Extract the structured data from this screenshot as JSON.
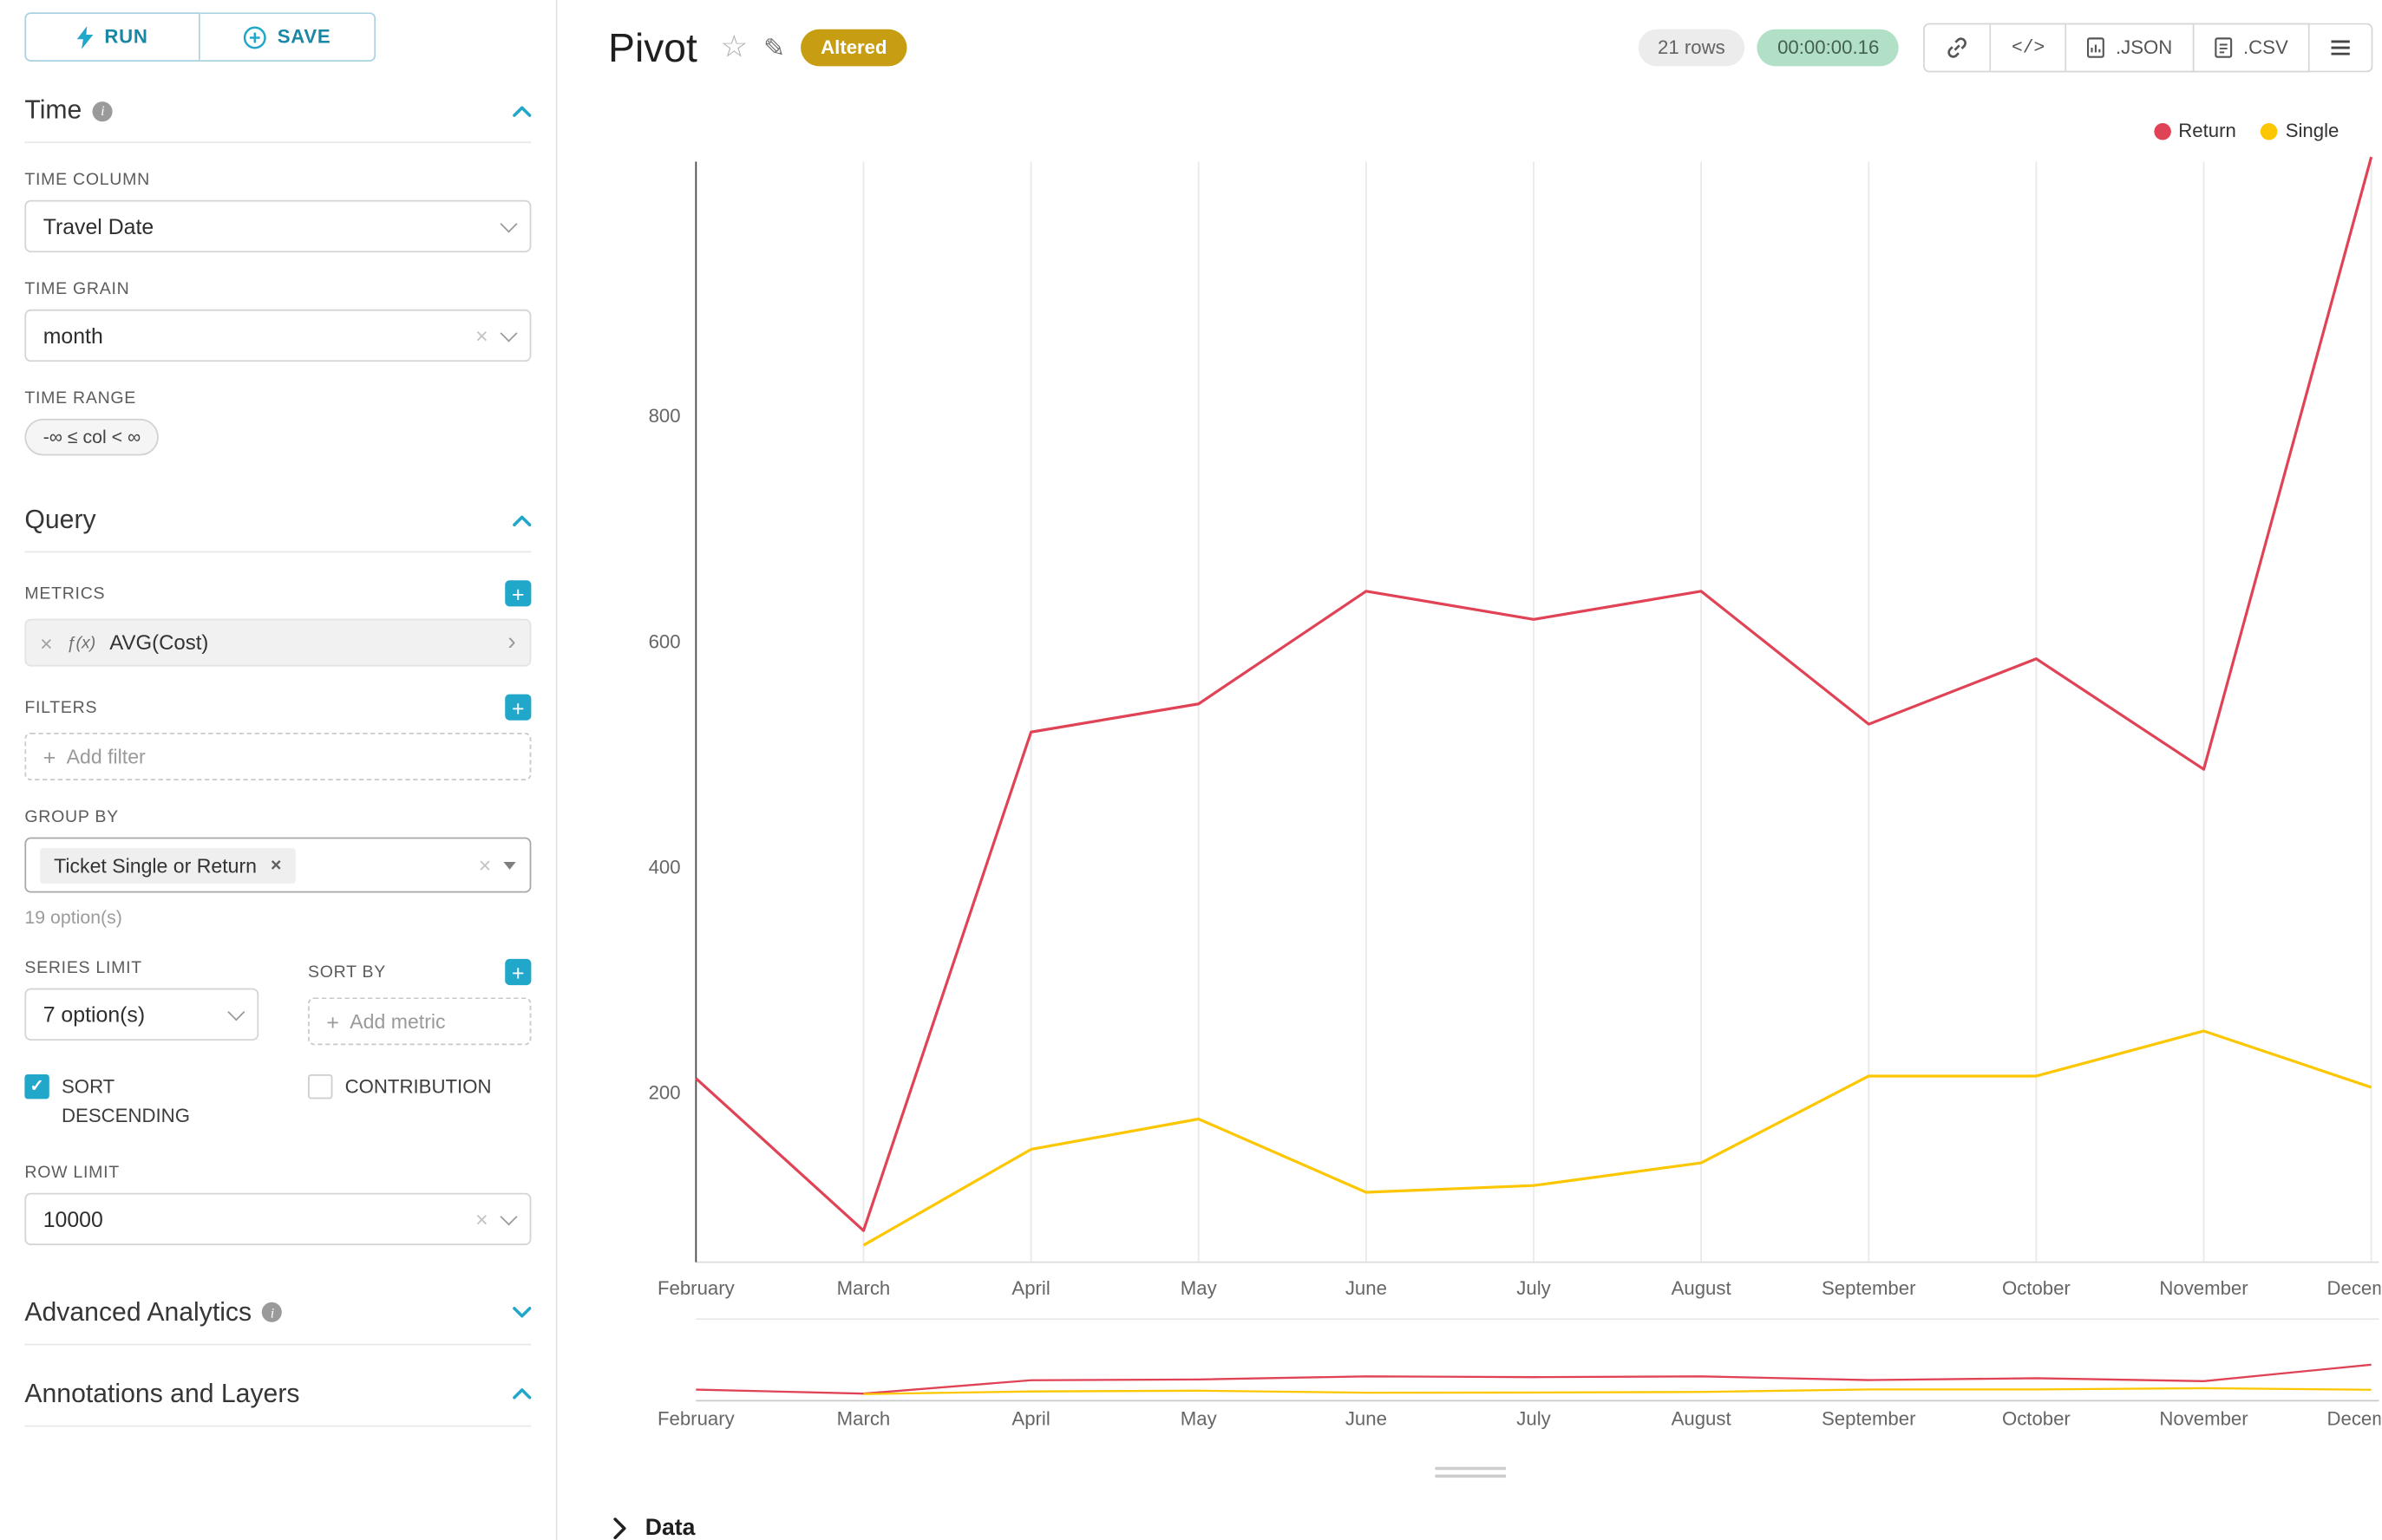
{
  "colors": {
    "accent": "#20a7c9",
    "altered_bg": "#c79e11",
    "timer_bg": "#b2e0c6"
  },
  "toolbar": {
    "run": "RUN",
    "save": "SAVE"
  },
  "sidebar": {
    "time": {
      "title": "Time",
      "time_column_label": "TIME COLUMN",
      "time_column_value": "Travel Date",
      "time_grain_label": "TIME GRAIN",
      "time_grain_value": "month",
      "time_range_label": "TIME RANGE",
      "time_range_value": "-∞ ≤ col < ∞"
    },
    "query": {
      "title": "Query",
      "metrics_label": "METRICS",
      "metric_fx": "ƒ(x)",
      "metric_value": "AVG(Cost)",
      "filters_label": "FILTERS",
      "add_filter_placeholder": "Add filter",
      "group_by_label": "GROUP BY",
      "group_by_tag": "Ticket Single or Return",
      "group_by_hint": "19 option(s)",
      "series_limit_label": "SERIES LIMIT",
      "series_limit_value": "7 option(s)",
      "sort_by_label": "SORT BY",
      "add_metric_placeholder": "Add metric",
      "sort_descending_label": "SORT DESCENDING",
      "sort_descending_checked": true,
      "contribution_label": "CONTRIBUTION",
      "contribution_checked": false,
      "row_limit_label": "ROW LIMIT",
      "row_limit_value": "10000"
    },
    "advanced_title": "Advanced Analytics",
    "annotations_title": "Annotations and Layers"
  },
  "header": {
    "title": "Pivot",
    "altered": "Altered",
    "rows": "21 rows",
    "timer": "00:00:00.16",
    "code_glyph": "</>",
    "json": ".JSON",
    "csv": ".CSV"
  },
  "chart_data": {
    "type": "line",
    "title": "Pivot",
    "x": [
      "February",
      "March",
      "April",
      "May",
      "June",
      "July",
      "August",
      "September",
      "October",
      "November",
      "December"
    ],
    "series": [
      {
        "name": "Return",
        "color": "#e04355",
        "values": [
          213,
          78,
          520,
          545,
          645,
          620,
          645,
          527,
          585,
          487,
          1030
        ]
      },
      {
        "name": "Single",
        "color": "#fcc700",
        "values": [
          null,
          65,
          150,
          177,
          112,
          118,
          138,
          215,
          215,
          255,
          205
        ]
      }
    ],
    "yticks": [
      200,
      400,
      600,
      800
    ],
    "ylim": [
      50,
      1060
    ],
    "legend": [
      "Return",
      "Single"
    ],
    "legend_position": "top-right",
    "grid": "vertical",
    "has_mini_preview": true
  },
  "data_panel": {
    "title": "Data"
  }
}
